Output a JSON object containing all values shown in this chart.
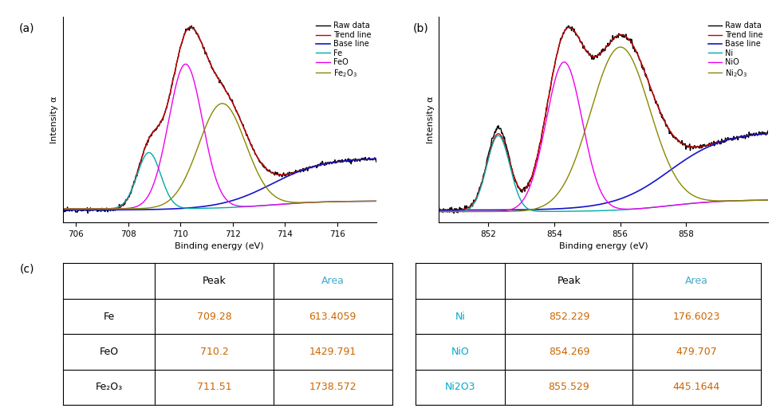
{
  "panel_a": {
    "label": "(a)",
    "xlabel": "Binding energy (eV)",
    "ylabel": "Intensity α",
    "xlim": [
      705.5,
      717.5
    ],
    "xticks": [
      706,
      708,
      710,
      712,
      714,
      716
    ],
    "legend_labels": [
      "Raw data",
      "Trend line",
      "Base line",
      "Fe",
      "FeO",
      "Fe₂O₃"
    ],
    "legend_colors": [
      "#000000",
      "#cc0000",
      "#1414cc",
      "#00aaaa",
      "#ee00ee",
      "#888800"
    ]
  },
  "panel_b": {
    "label": "(b)",
    "xlabel": "Binding energy (eV)",
    "ylabel": "Intensity α",
    "xlim": [
      850.5,
      860.5
    ],
    "xticks": [
      852,
      854,
      856,
      858
    ],
    "legend_labels": [
      "Raw data",
      "Trend line",
      "Base line",
      "Ni",
      "NiO",
      "Ni₂O₃"
    ],
    "legend_colors": [
      "#000000",
      "#cc0000",
      "#1414cc",
      "#00aaaa",
      "#ee00ee",
      "#888800"
    ]
  },
  "table": {
    "fe_rows": [
      [
        "Fe",
        "709.28",
        "613.4059"
      ],
      [
        "FeO",
        "710.2",
        "1429.791"
      ],
      [
        "Fe₂O₃",
        "711.51",
        "1738.572"
      ]
    ],
    "ni_rows": [
      [
        "Ni",
        "852.229",
        "176.6023"
      ],
      [
        "NiO",
        "854.269",
        "479.707"
      ],
      [
        "Ni2O3",
        "855.529",
        "445.1644"
      ]
    ],
    "fe_label_colors": [
      "#000000",
      "#000000",
      "#000000"
    ],
    "ni_label_colors": [
      "#cc6600",
      "#cc6600",
      "#cc6600"
    ],
    "peak_color": "#cc6600",
    "area_color": "#cc6600",
    "header_peak_color": "#000000",
    "header_area_color": "#44aacc"
  }
}
